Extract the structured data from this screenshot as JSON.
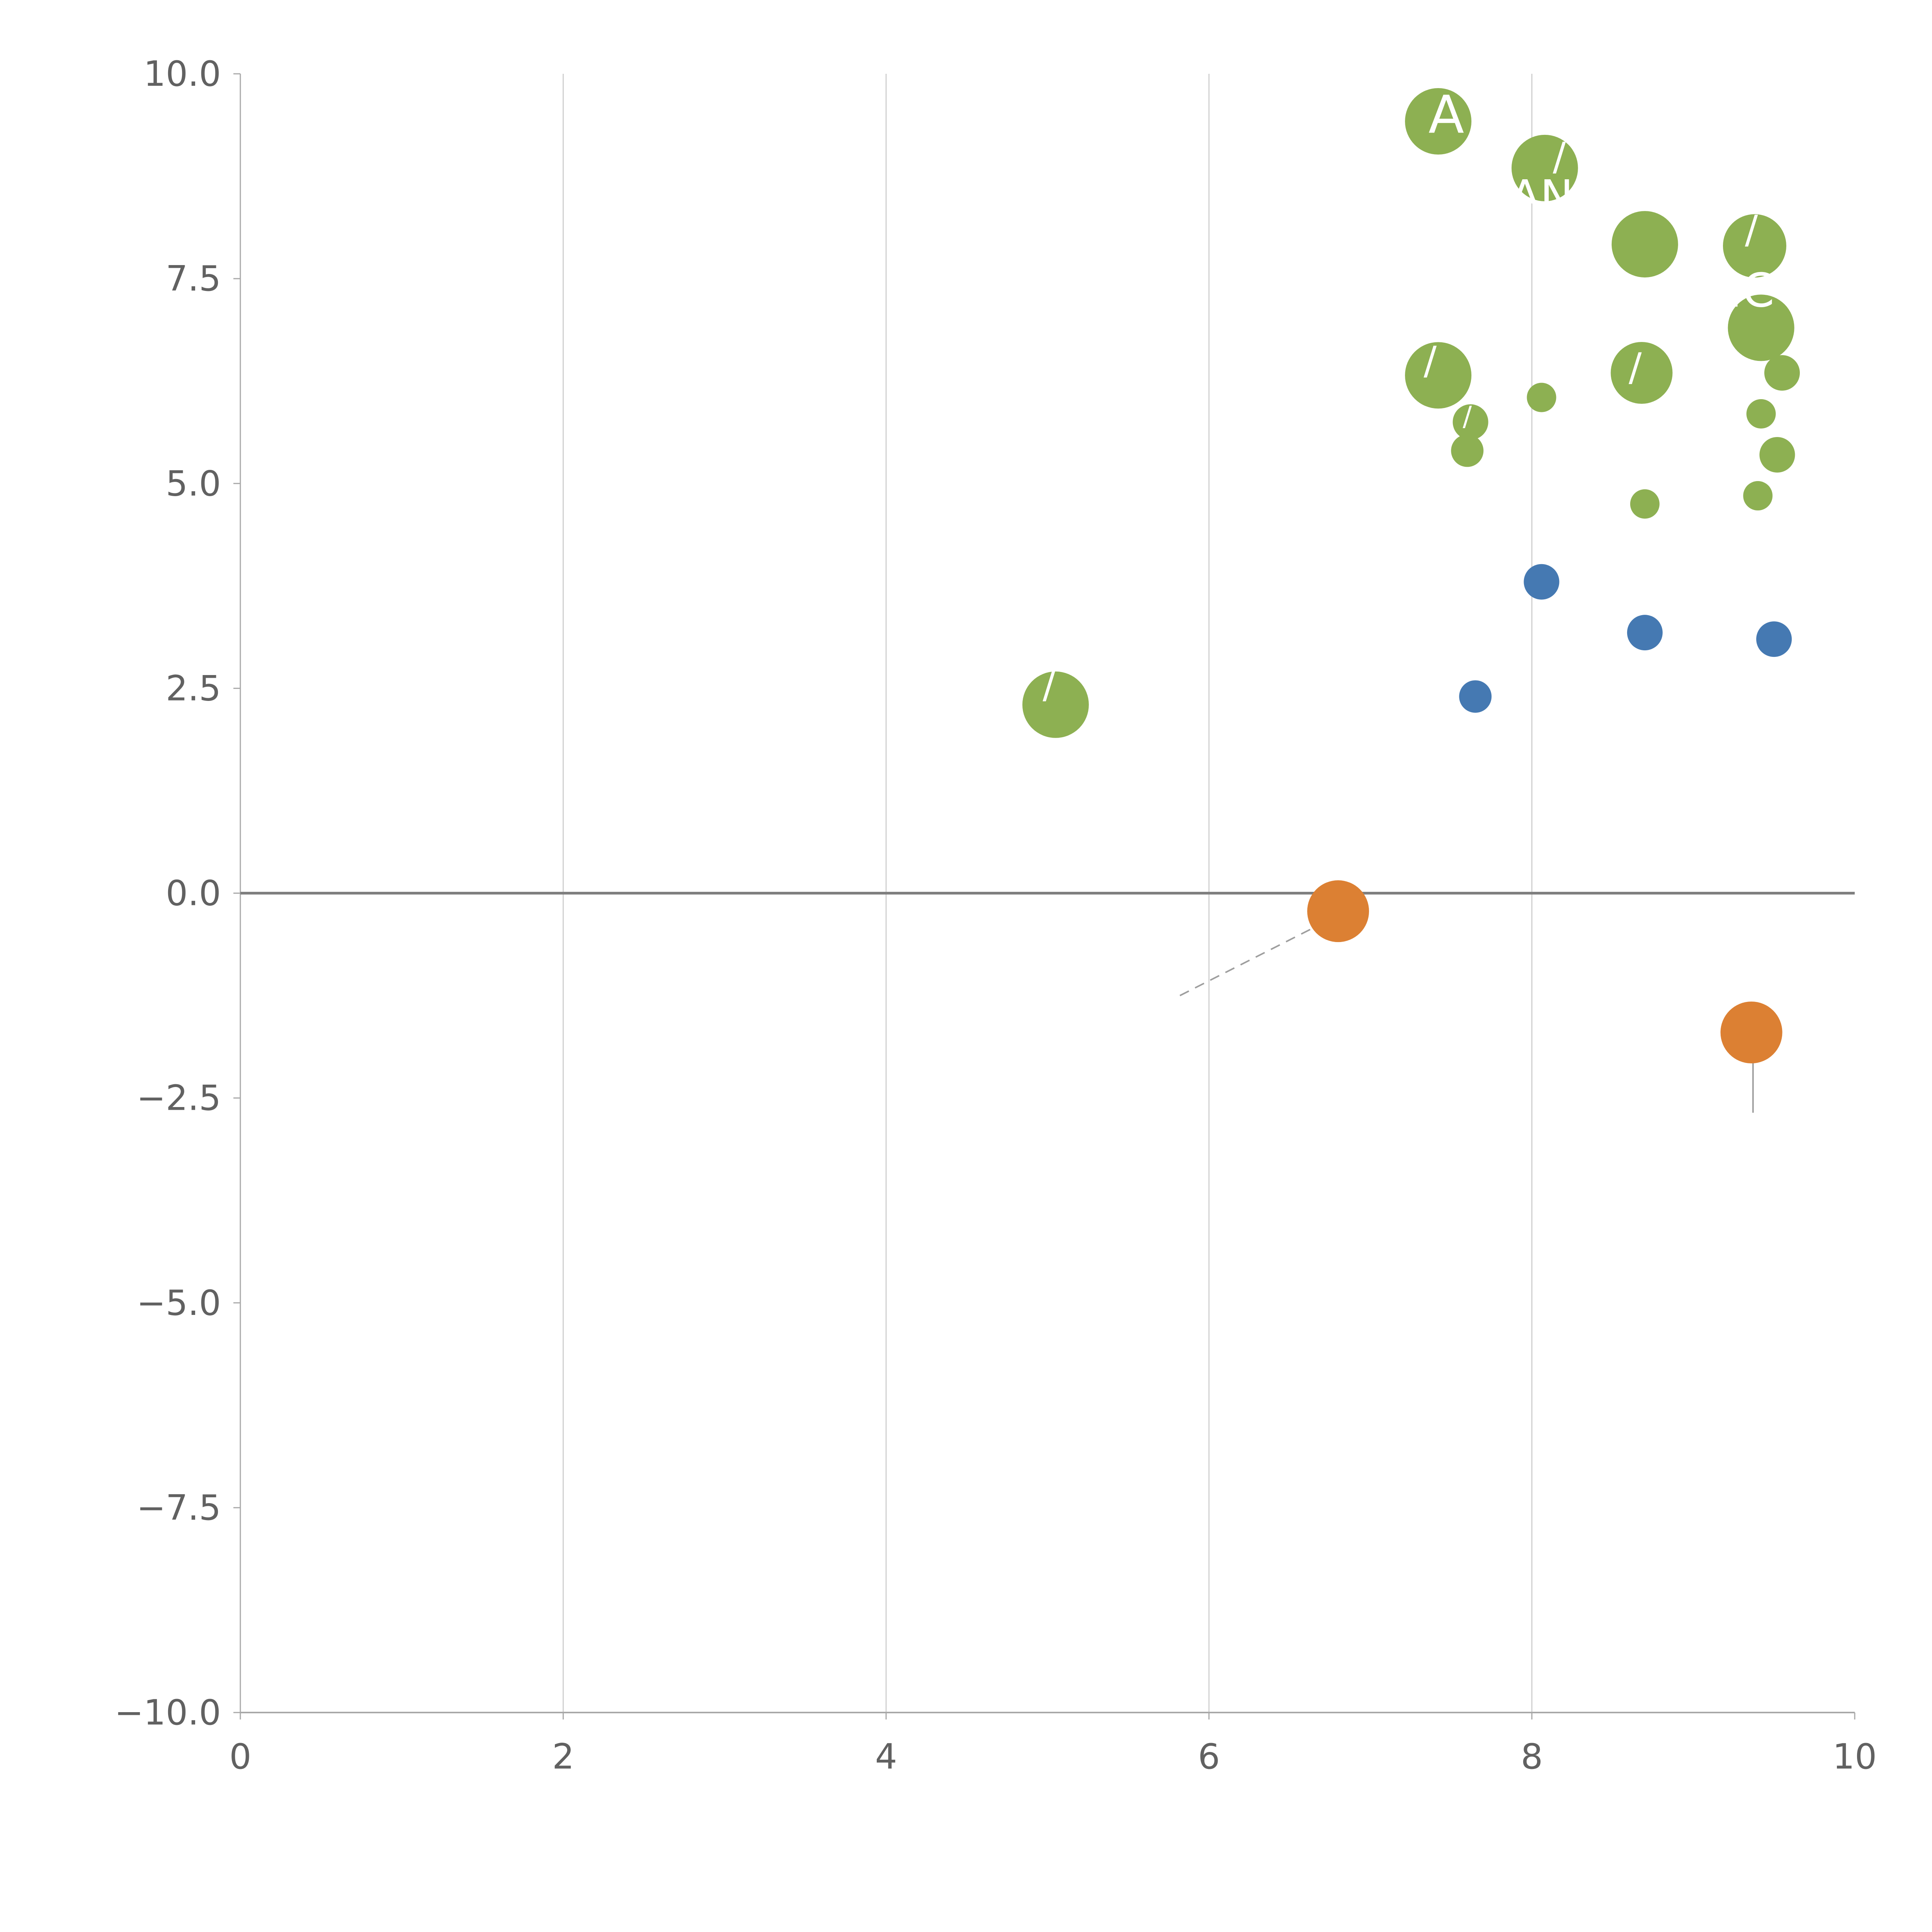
{
  "figure": {
    "background": "#ffffff"
  },
  "chart_data": {
    "type": "scatter",
    "title": "",
    "xlabel": "",
    "ylabel": "",
    "xlim": [
      0,
      10
    ],
    "ylim": [
      -10,
      10
    ],
    "grid": {
      "vertical_lines_at": [
        2,
        4,
        6,
        8
      ]
    },
    "zero_line_y": 0,
    "x_ticks": {
      "values": [
        0,
        2,
        4,
        6,
        8,
        10
      ],
      "labels": [
        "0",
        "2",
        "4",
        "6",
        "8",
        "10"
      ]
    },
    "y_ticks": {
      "values": [
        -10,
        -7.5,
        -5,
        -2.5,
        0,
        2.5,
        5,
        7.5,
        10
      ],
      "labels": [
        "−10.0",
        "−7.5",
        "−5.0",
        "−2.5",
        "0.0",
        "2.5",
        "5.0",
        "7.5",
        "10.0"
      ]
    },
    "colors": {
      "green": "#8DB052",
      "blue": "#4579B2",
      "orange": "#DC8033",
      "grid": "#d0d0d0",
      "axis": "#a8a8a8",
      "zero_line": "#7f7f7f",
      "tick_label": "#616161",
      "annotation": "#9e9e9e",
      "fragment": "#ffffff"
    },
    "series": [
      {
        "name": "green",
        "color_key": "green",
        "points": [
          {
            "x": 7.42,
            "y": 9.42,
            "r": 86
          },
          {
            "x": 8.08,
            "y": 8.85,
            "r": 86
          },
          {
            "x": 8.7,
            "y": 7.92,
            "r": 86
          },
          {
            "x": 9.38,
            "y": 7.9,
            "r": 82
          },
          {
            "x": 9.42,
            "y": 6.9,
            "r": 86
          },
          {
            "x": 7.42,
            "y": 6.32,
            "r": 86
          },
          {
            "x": 8.68,
            "y": 6.35,
            "r": 80
          },
          {
            "x": 8.06,
            "y": 6.05,
            "r": 38
          },
          {
            "x": 7.62,
            "y": 5.75,
            "r": 46
          },
          {
            "x": 7.6,
            "y": 5.4,
            "r": 42
          },
          {
            "x": 9.55,
            "y": 6.35,
            "r": 46
          },
          {
            "x": 9.42,
            "y": 5.85,
            "r": 38
          },
          {
            "x": 9.52,
            "y": 5.35,
            "r": 46
          },
          {
            "x": 8.7,
            "y": 4.75,
            "r": 38
          },
          {
            "x": 9.4,
            "y": 4.85,
            "r": 38
          },
          {
            "x": 5.05,
            "y": 2.3,
            "r": 86
          }
        ]
      },
      {
        "name": "blue",
        "color_key": "blue",
        "points": [
          {
            "x": 8.06,
            "y": 3.8,
            "r": 46
          },
          {
            "x": 8.7,
            "y": 3.18,
            "r": 46
          },
          {
            "x": 9.5,
            "y": 3.1,
            "r": 46
          },
          {
            "x": 7.65,
            "y": 2.4,
            "r": 42
          }
        ]
      },
      {
        "name": "orange",
        "color_key": "orange",
        "points": [
          {
            "x": 6.8,
            "y": -0.22,
            "r": 80
          },
          {
            "x": 9.36,
            "y": -1.7,
            "r": 80
          }
        ]
      }
    ],
    "label_fragments": [
      {
        "text": "A",
        "x": 7.47,
        "y": 9.5,
        "size": 135
      },
      {
        "text": "/",
        "x": 8.17,
        "y": 8.99,
        "size": 100
      },
      {
        "text": "AN",
        "x": 8.06,
        "y": 8.5,
        "size": 115
      },
      {
        "text": "/",
        "x": 9.36,
        "y": 8.1,
        "size": 100
      },
      {
        "text": "IC",
        "x": 9.36,
        "y": 7.35,
        "size": 120
      },
      {
        "text": "/",
        "x": 7.37,
        "y": 6.5,
        "size": 100
      },
      {
        "text": "/",
        "x": 8.64,
        "y": 6.42,
        "size": 100
      },
      {
        "text": "/",
        "x": 7.6,
        "y": 5.82,
        "size": 70
      },
      {
        "text": "/",
        "x": 5.01,
        "y": 2.55,
        "size": 100
      }
    ],
    "annotation_lines": [
      {
        "x1": 5.82,
        "y1": -1.25,
        "x2": 6.72,
        "y2": -0.35,
        "dash": true
      },
      {
        "x1": 9.37,
        "y1": -1.9,
        "x2": 9.37,
        "y2": -2.68,
        "dash": false
      }
    ]
  }
}
